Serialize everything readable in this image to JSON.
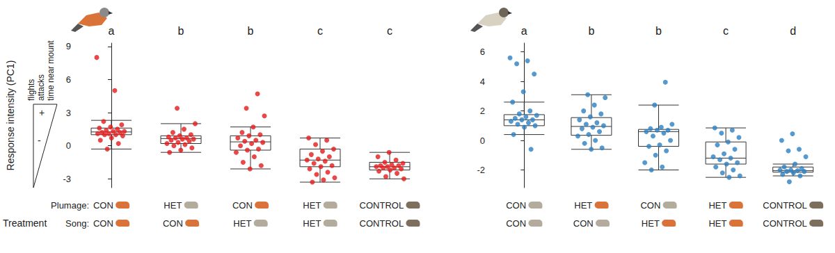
{
  "chart_data": [
    {
      "type": "boxplot",
      "y_label": "Response intensity (PC1)",
      "y_scale_labels": [
        "flights",
        "attacks",
        "time near mount"
      ],
      "y_scale_ends": [
        "+",
        "-"
      ],
      "row_title": "Treatment",
      "row_labels": [
        "Plumage:",
        "Song:"
      ],
      "plumage": [
        "CON",
        "HET",
        "CON",
        "HET",
        "CONTROL"
      ],
      "song": [
        "CON",
        "CON",
        "HET",
        "HET",
        "CONTROL"
      ],
      "letters": [
        "a",
        "b",
        "b",
        "c",
        "c"
      ],
      "boxes": [
        [
          -0.3,
          1.0,
          1.25,
          1.6,
          2.3
        ],
        [
          -0.6,
          0.2,
          0.65,
          0.9,
          2.0
        ],
        [
          -2.1,
          -0.4,
          0.35,
          0.9,
          1.7
        ],
        [
          -3.3,
          -1.9,
          -1.3,
          -0.3,
          0.7
        ],
        [
          -3.0,
          -2.2,
          -1.9,
          -1.5,
          -0.6
        ]
      ],
      "points": [
        [
          8.0,
          5.0,
          2.2,
          1.9,
          1.7,
          1.6,
          1.5,
          1.4,
          1.3,
          1.3,
          1.2,
          1.2,
          1.1,
          1.1,
          1.0,
          1.0,
          0.9,
          0.7,
          0.5,
          0.2,
          -0.3
        ],
        [
          3.4,
          2.0,
          1.5,
          1.2,
          1.0,
          0.9,
          0.8,
          0.7,
          0.7,
          0.6,
          0.6,
          0.5,
          0.4,
          0.3,
          0.2,
          0.1,
          0.0,
          -0.2,
          -0.4,
          -0.6
        ],
        [
          4.7,
          3.4,
          2.7,
          1.7,
          1.2,
          1.0,
          0.9,
          0.7,
          0.5,
          0.4,
          0.3,
          0.2,
          0.0,
          -0.3,
          -0.4,
          -0.6,
          -1.0,
          -1.5,
          -1.8,
          -2.1
        ],
        [
          0.7,
          0.5,
          0.1,
          -0.3,
          -0.5,
          -0.8,
          -1.0,
          -1.2,
          -1.3,
          -1.4,
          -1.6,
          -1.8,
          -1.9,
          -2.1,
          -2.4,
          -2.6,
          -2.9,
          -3.1,
          -3.3
        ],
        [
          -0.6,
          -1.0,
          -1.3,
          -1.5,
          -1.6,
          -1.7,
          -1.8,
          -1.8,
          -1.9,
          -1.9,
          -2.0,
          -2.0,
          -2.1,
          -2.2,
          -2.3,
          -2.5,
          -2.8,
          -3.0
        ]
      ],
      "color": "#e41a1c",
      "ylim": [
        -3.8,
        9.3
      ],
      "yticks": [
        -3,
        0,
        3,
        6,
        9
      ],
      "grid": false
    },
    {
      "type": "boxplot",
      "plumage": [
        "CON",
        "HET",
        "CON",
        "HET",
        "CONTROL"
      ],
      "song": [
        "CON",
        "CON",
        "HET",
        "HET",
        "CONTROL"
      ],
      "letters": [
        "a",
        "b",
        "b",
        "c",
        "d"
      ],
      "boxes": [
        [
          0.4,
          1.0,
          1.4,
          1.75,
          2.6
        ],
        [
          -0.6,
          0.35,
          0.95,
          1.55,
          3.1
        ],
        [
          -2.0,
          -0.4,
          0.6,
          0.75,
          2.4
        ],
        [
          -2.5,
          -1.6,
          -1.2,
          -0.1,
          0.85
        ],
        [
          -2.4,
          -2.15,
          -2.05,
          -1.8,
          -1.6
        ]
      ],
      "points": [
        [
          5.6,
          5.4,
          5.2,
          4.5,
          3.3,
          2.6,
          2.0,
          1.8,
          1.7,
          1.6,
          1.5,
          1.4,
          1.4,
          1.3,
          1.2,
          1.1,
          1.0,
          0.9,
          0.4,
          -0.6
        ],
        [
          3.1,
          2.9,
          2.4,
          2.0,
          1.8,
          1.6,
          1.4,
          1.2,
          1.1,
          1.0,
          0.9,
          0.8,
          0.6,
          0.4,
          0.3,
          0.0,
          -0.2,
          -0.5,
          -0.6
        ],
        [
          3.95,
          2.4,
          1.1,
          0.9,
          0.8,
          0.7,
          0.7,
          0.6,
          0.5,
          0.3,
          0.0,
          -0.3,
          -0.4,
          -0.7,
          -1.0,
          -1.5,
          -1.8,
          -2.0
        ],
        [
          0.85,
          0.7,
          0.5,
          0.2,
          -0.1,
          -0.3,
          -0.6,
          -0.9,
          -1.1,
          -1.2,
          -1.3,
          -1.5,
          -1.6,
          -1.8,
          -2.0,
          -2.2,
          -2.4,
          -2.5
        ],
        [
          0.45,
          0.0,
          -0.6,
          -0.7,
          -1.1,
          -1.6,
          -1.8,
          -1.9,
          -2.0,
          -2.0,
          -2.05,
          -2.1,
          -2.1,
          -2.2,
          -2.3,
          -2.4,
          -2.8
        ]
      ],
      "color": "#2b7fc2",
      "ylim": [
        -3.2,
        6.6
      ],
      "yticks": [
        -2,
        0,
        2,
        4,
        6
      ],
      "grid": false
    }
  ]
}
